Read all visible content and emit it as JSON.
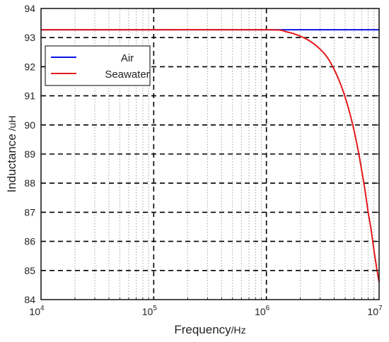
{
  "chart_data": {
    "type": "line",
    "x_scale": "log",
    "xlim": [
      10000,
      10000000
    ],
    "ylim": [
      84,
      94
    ],
    "x_ticks": [
      10000,
      100000,
      1000000,
      10000000
    ],
    "x_tick_labels": [
      {
        "base": "10",
        "exp": "4"
      },
      {
        "base": "10",
        "exp": "5"
      },
      {
        "base": "10",
        "exp": "6"
      },
      {
        "base": "10",
        "exp": "7"
      }
    ],
    "y_ticks": [
      84,
      85,
      86,
      87,
      88,
      89,
      90,
      91,
      92,
      93,
      94
    ],
    "y_tick_labels": [
      "84",
      "85",
      "86",
      "87",
      "88",
      "89",
      "90",
      "91",
      "92",
      "93",
      "94"
    ],
    "xlabel": {
      "main": "Frequency",
      "unit": "/Hz"
    },
    "ylabel": {
      "main": "Inductance",
      "unit": " /uH"
    },
    "grid": true,
    "legend": {
      "position": "top-left",
      "entries": [
        "Air",
        "Seawater"
      ]
    },
    "series": [
      {
        "name": "Air",
        "color": "#0a14e6",
        "x": [
          10000,
          100000,
          1000000,
          10000000
        ],
        "y": [
          93.27,
          93.27,
          93.27,
          93.27
        ]
      },
      {
        "name": "Seawater",
        "color": "#e41a1c",
        "x": [
          10000,
          100000,
          1000000,
          1500000,
          2000000,
          2500000,
          3000000,
          3500000,
          4000000,
          4500000,
          5000000,
          5500000,
          6000000,
          6500000,
          7000000,
          7500000,
          8000000,
          8500000,
          9000000,
          9500000,
          10000000
        ],
        "y": [
          93.27,
          93.27,
          93.27,
          93.2,
          93.05,
          92.85,
          92.6,
          92.3,
          91.9,
          91.45,
          90.95,
          90.4,
          89.8,
          89.15,
          88.45,
          87.75,
          87.0,
          86.4,
          85.7,
          85.1,
          84.6
        ]
      }
    ]
  }
}
